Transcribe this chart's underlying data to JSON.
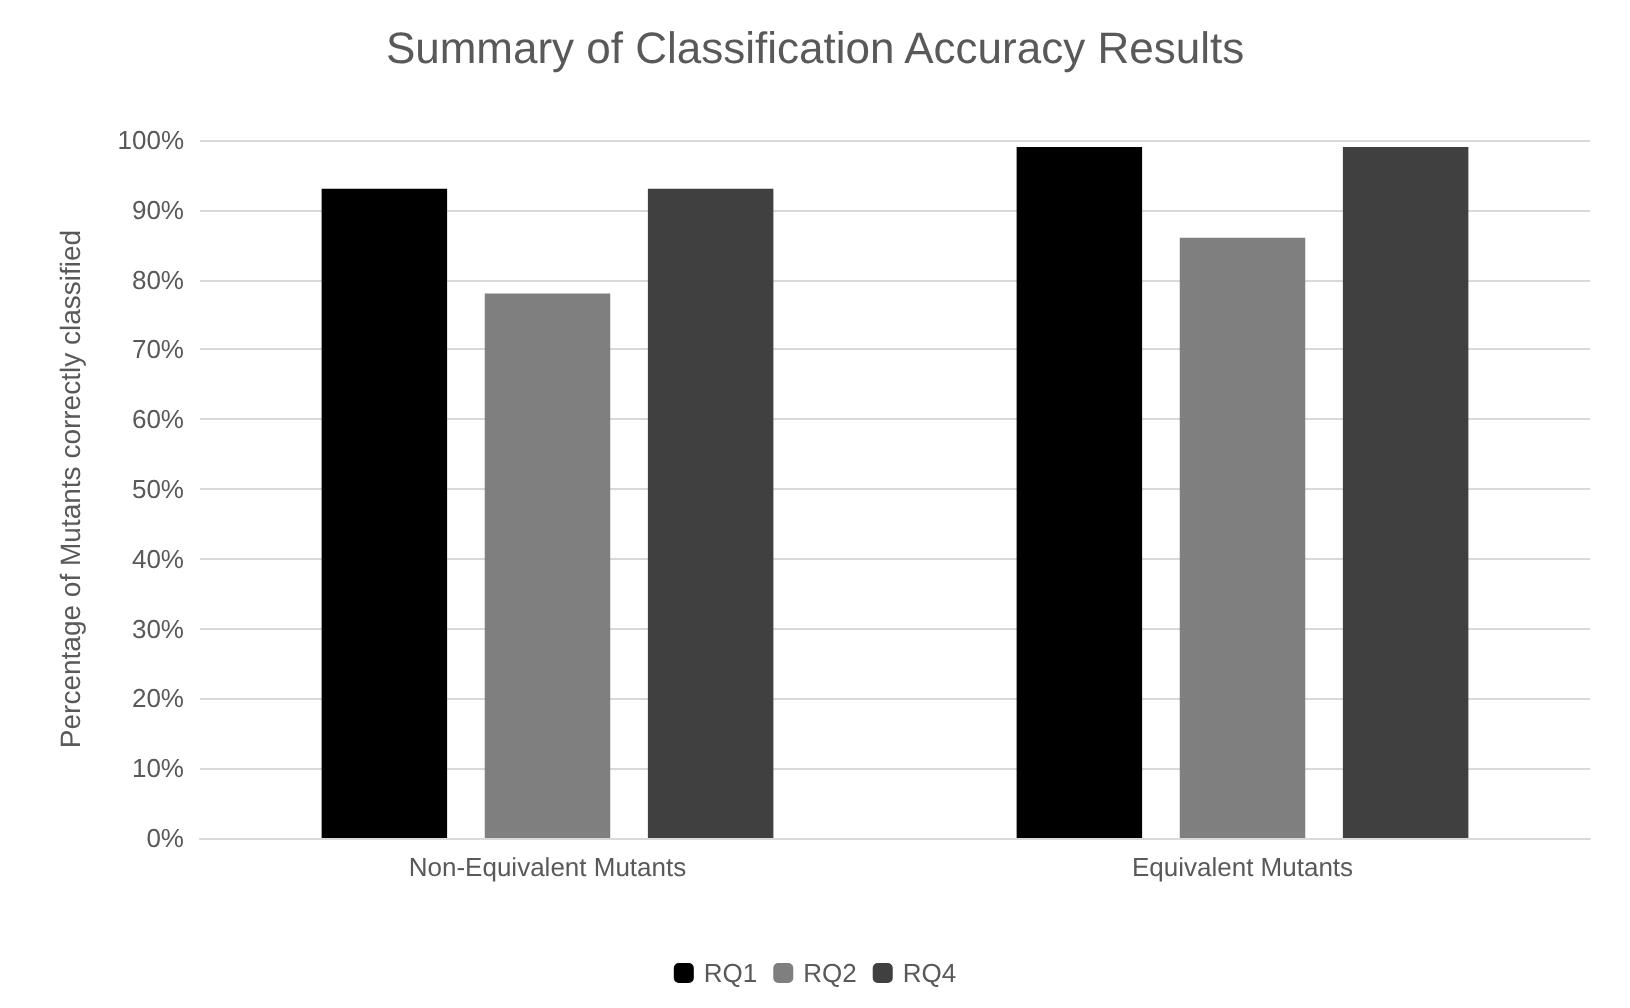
{
  "chart_data": {
    "type": "bar",
    "title": "Summary of Classification Accuracy Results",
    "ylabel": "Percentage of Mutants correctly classified",
    "categories": [
      "Non-Equivalent Mutants",
      "Equivalent Mutants"
    ],
    "series": [
      {
        "name": "RQ1",
        "color": "#000000",
        "values": [
          93,
          99
        ]
      },
      {
        "name": "RQ2",
        "color": "#7f7f7f",
        "values": [
          78,
          86
        ]
      },
      {
        "name": "RQ4",
        "color": "#404040",
        "values": [
          93,
          99
        ]
      }
    ],
    "ylim": [
      0,
      100
    ],
    "yticks": [
      {
        "value": 0,
        "label": "0%"
      },
      {
        "value": 10,
        "label": "10%"
      },
      {
        "value": 20,
        "label": "20%"
      },
      {
        "value": 30,
        "label": "30%"
      },
      {
        "value": 40,
        "label": "40%"
      },
      {
        "value": 50,
        "label": "50%"
      },
      {
        "value": 60,
        "label": "60%"
      },
      {
        "value": 70,
        "label": "70%"
      },
      {
        "value": 80,
        "label": "80%"
      },
      {
        "value": 90,
        "label": "90%"
      },
      {
        "value": 100,
        "label": "100%"
      }
    ],
    "grid": "y",
    "legend": "bottom"
  }
}
